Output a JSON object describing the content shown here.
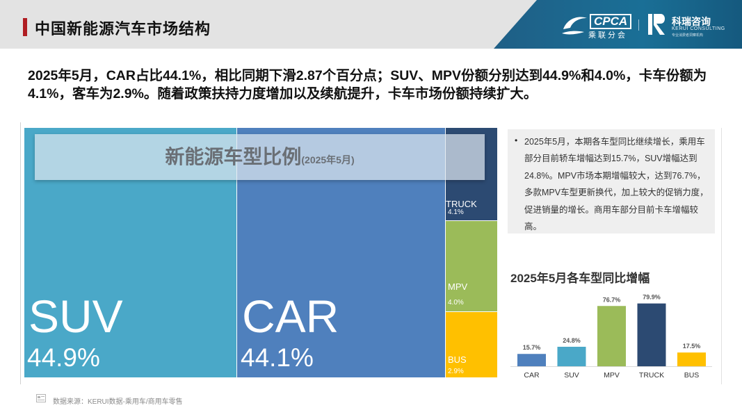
{
  "header": {
    "title": "中国新能源汽车市场结构",
    "cpca_logo_text": "CPCA",
    "cpca_logo_sub": "乘联分会",
    "kerui_name": "科瑞咨询",
    "kerui_en": "KERUI CONSULTING",
    "kerui_tag": "专业消费者洞察机构"
  },
  "headline": "2025年5月，CAR占比44.1%，相比同期下滑2.87个百分点；SUV、MPV份额分别达到44.9%和4.0%，卡车份额为4.1%，客车为2.9%。随着政策扶持力度增加以及续航提升，卡车市场份额持续扩大。",
  "note": {
    "bullet": "•",
    "text": "2025年5月，本期各车型同比继续增长，乘用车部分目前轿车增幅达到15.7%，SUV增幅达到24.8%。MPV市场本期增幅较大，达到76.7%，多款MPV车型更新换代，加上较大的促销力度，促进销量的增长。商用车部分目前卡车增幅较高。"
  },
  "footer": {
    "source": "数据来源：KERUI数据-乘用车/商用车零售"
  },
  "colors": {
    "SUV": "#4aa8c8",
    "CAR": "#4f80bd",
    "TRUCK": "#2c4a72",
    "MPV": "#9bbb59",
    "BUS": "#ffc000"
  },
  "chart_data": [
    {
      "type": "treemap",
      "title": "新能源车型比例",
      "subtitle": "(2025年5月)",
      "items": [
        {
          "name": "SUV",
          "label": "44.9%",
          "value": 44.9
        },
        {
          "name": "CAR",
          "label": "44.1%",
          "value": 44.1
        },
        {
          "name": "TRUCK",
          "label": "4.1%",
          "value": 4.1
        },
        {
          "name": "MPV",
          "label": "4.0%",
          "value": 4.0
        },
        {
          "name": "BUS",
          "label": "2.9%",
          "value": 2.9
        }
      ]
    },
    {
      "type": "bar",
      "title": "2025年5月各车型同比增幅",
      "categories": [
        "CAR",
        "SUV",
        "MPV",
        "TRUCK",
        "BUS"
      ],
      "values": [
        15.7,
        24.8,
        76.7,
        79.9,
        17.5
      ],
      "labels": [
        "15.7%",
        "24.8%",
        "76.7%",
        "79.9%",
        "17.5%"
      ],
      "ylim": [
        0,
        100
      ],
      "grid": false
    }
  ]
}
